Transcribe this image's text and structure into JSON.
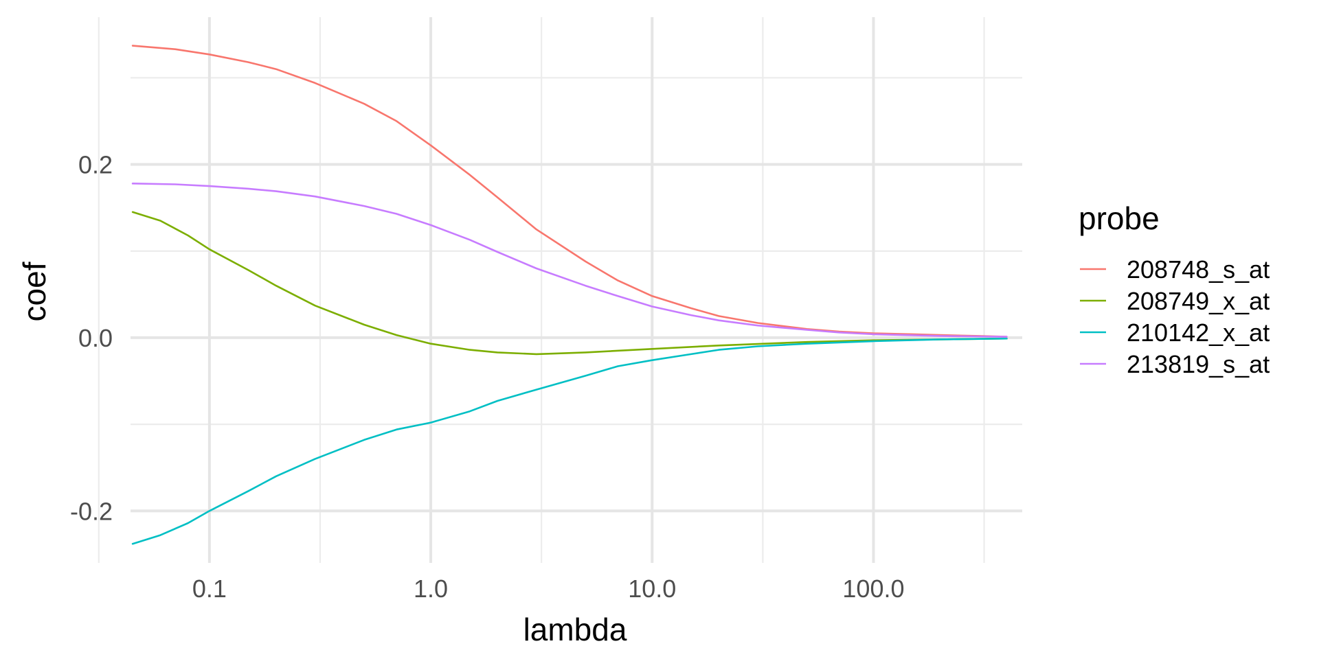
{
  "chart_data": {
    "type": "line",
    "xlabel": "lambda",
    "ylabel": "coef",
    "x_scale": "log10",
    "xlim": [
      0.044,
      470
    ],
    "ylim": [
      -0.26,
      0.37
    ],
    "x_ticks": [
      {
        "value": 0.1,
        "label": "0.1"
      },
      {
        "value": 1,
        "label": "1.0"
      },
      {
        "value": 10,
        "label": "10.0"
      },
      {
        "value": 100,
        "label": "100.0"
      }
    ],
    "y_ticks": [
      {
        "value": -0.2,
        "label": "-0.2"
      },
      {
        "value": 0.0,
        "label": "0.0"
      },
      {
        "value": 0.2,
        "label": "0.2"
      }
    ],
    "grid": true,
    "legend": {
      "title": "probe",
      "position": "right"
    },
    "series": [
      {
        "name": "208748_s_at",
        "color": "#F8766D",
        "points": [
          [
            0.045,
            0.337
          ],
          [
            0.07,
            0.333
          ],
          [
            0.1,
            0.327
          ],
          [
            0.15,
            0.318
          ],
          [
            0.2,
            0.31
          ],
          [
            0.3,
            0.294
          ],
          [
            0.5,
            0.27
          ],
          [
            0.7,
            0.25
          ],
          [
            1.0,
            0.222
          ],
          [
            1.5,
            0.188
          ],
          [
            2.0,
            0.162
          ],
          [
            3.0,
            0.125
          ],
          [
            5.0,
            0.088
          ],
          [
            7.0,
            0.066
          ],
          [
            10.0,
            0.048
          ],
          [
            15.0,
            0.034
          ],
          [
            20.0,
            0.025
          ],
          [
            30.0,
            0.017
          ],
          [
            50.0,
            0.01
          ],
          [
            70.0,
            0.007
          ],
          [
            100.0,
            0.005
          ],
          [
            150.0,
            0.004
          ],
          [
            200.0,
            0.003
          ],
          [
            300.0,
            0.002
          ],
          [
            400.0,
            0.001
          ]
        ]
      },
      {
        "name": "208749_x_at",
        "color": "#7CAE00",
        "points": [
          [
            0.045,
            0.145
          ],
          [
            0.06,
            0.135
          ],
          [
            0.08,
            0.118
          ],
          [
            0.1,
            0.102
          ],
          [
            0.15,
            0.078
          ],
          [
            0.2,
            0.06
          ],
          [
            0.3,
            0.037
          ],
          [
            0.5,
            0.015
          ],
          [
            0.7,
            0.003
          ],
          [
            1.0,
            -0.007
          ],
          [
            1.5,
            -0.014
          ],
          [
            2.0,
            -0.017
          ],
          [
            3.0,
            -0.019
          ],
          [
            5.0,
            -0.017
          ],
          [
            10.0,
            -0.013
          ],
          [
            20.0,
            -0.009
          ],
          [
            50.0,
            -0.005
          ],
          [
            100.0,
            -0.003
          ],
          [
            200.0,
            -0.002
          ],
          [
            400.0,
            -0.001
          ]
        ]
      },
      {
        "name": "210142_x_at",
        "color": "#00BFC4",
        "points": [
          [
            0.045,
            -0.238
          ],
          [
            0.06,
            -0.228
          ],
          [
            0.08,
            -0.214
          ],
          [
            0.1,
            -0.2
          ],
          [
            0.15,
            -0.177
          ],
          [
            0.2,
            -0.16
          ],
          [
            0.3,
            -0.14
          ],
          [
            0.5,
            -0.118
          ],
          [
            0.7,
            -0.106
          ],
          [
            1.0,
            -0.098
          ],
          [
            1.5,
            -0.085
          ],
          [
            2.0,
            -0.073
          ],
          [
            3.0,
            -0.06
          ],
          [
            5.0,
            -0.044
          ],
          [
            7.0,
            -0.033
          ],
          [
            10.0,
            -0.026
          ],
          [
            15.0,
            -0.019
          ],
          [
            20.0,
            -0.014
          ],
          [
            30.0,
            -0.01
          ],
          [
            50.0,
            -0.007
          ],
          [
            100.0,
            -0.004
          ],
          [
            200.0,
            -0.002
          ],
          [
            400.0,
            -0.001
          ]
        ]
      },
      {
        "name": "213819_s_at",
        "color": "#C77CFF",
        "points": [
          [
            0.045,
            0.178
          ],
          [
            0.07,
            0.177
          ],
          [
            0.1,
            0.175
          ],
          [
            0.15,
            0.172
          ],
          [
            0.2,
            0.169
          ],
          [
            0.3,
            0.163
          ],
          [
            0.5,
            0.152
          ],
          [
            0.7,
            0.143
          ],
          [
            1.0,
            0.13
          ],
          [
            1.5,
            0.113
          ],
          [
            2.0,
            0.099
          ],
          [
            3.0,
            0.08
          ],
          [
            5.0,
            0.06
          ],
          [
            7.0,
            0.048
          ],
          [
            10.0,
            0.036
          ],
          [
            15.0,
            0.026
          ],
          [
            20.0,
            0.02
          ],
          [
            30.0,
            0.014
          ],
          [
            50.0,
            0.009
          ],
          [
            70.0,
            0.006
          ],
          [
            100.0,
            0.004
          ],
          [
            200.0,
            0.002
          ],
          [
            400.0,
            0.001
          ]
        ]
      }
    ]
  }
}
